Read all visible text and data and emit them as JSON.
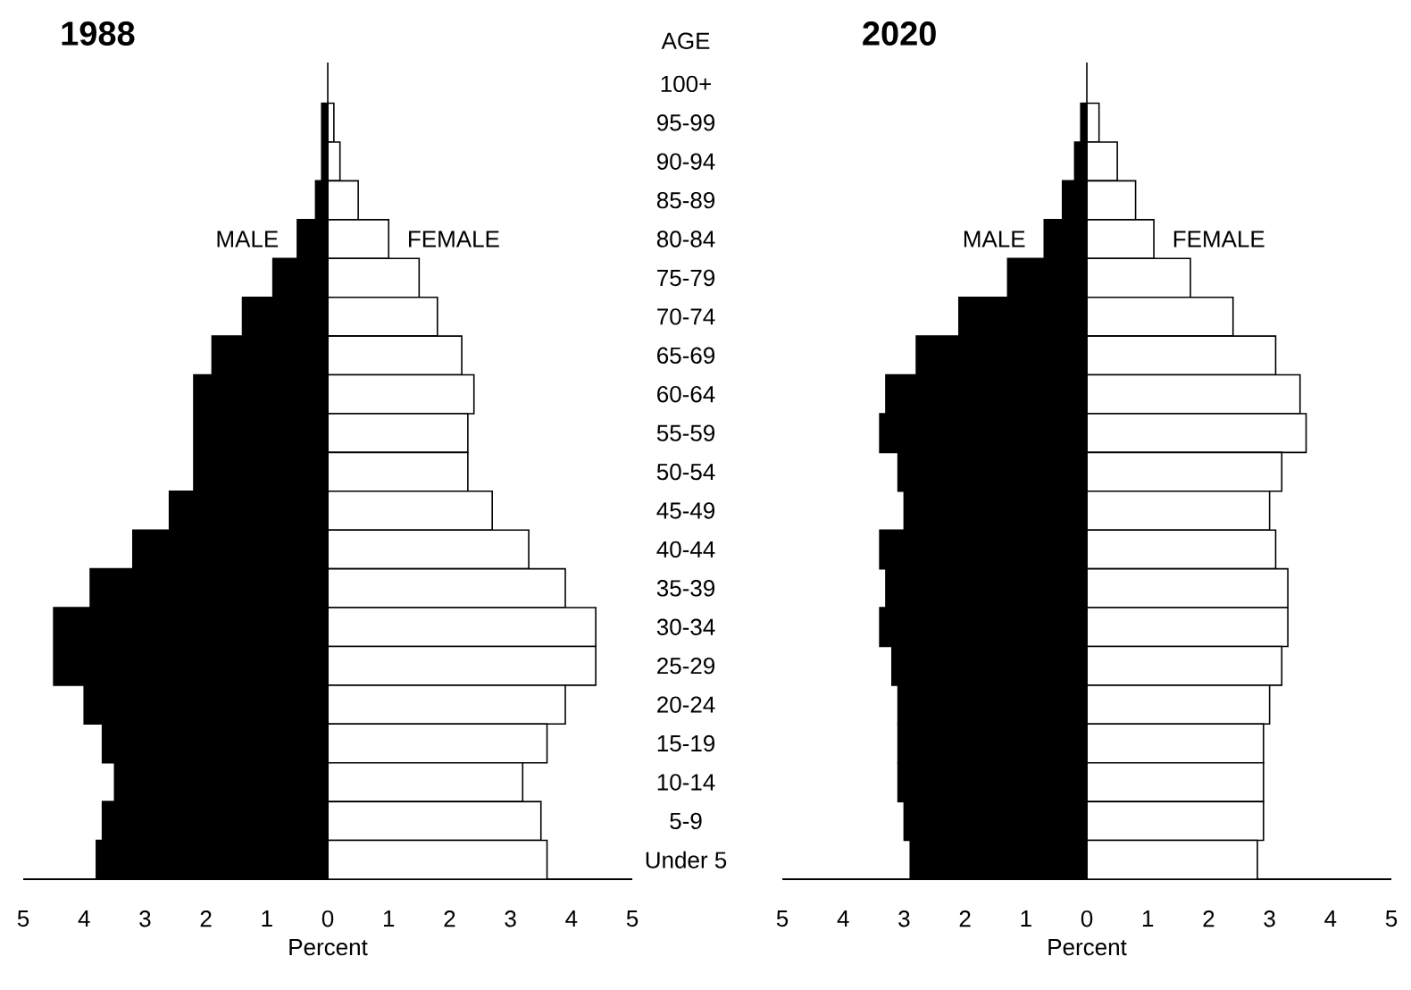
{
  "chart_data": [
    {
      "type": "bar",
      "orientation": "horizontal",
      "stacked": true,
      "title": "1988",
      "xlabel": "Percent",
      "ylabel": "AGE",
      "ref_lines": [
        {
          "axis": "x",
          "value": 0,
          "color": "#000000"
        }
      ],
      "categories": [
        "100+",
        "95-99",
        "90-94",
        "85-89",
        "80-84",
        "75-79",
        "70-74",
        "65-69",
        "60-64",
        "55-59",
        "50-54",
        "45-49",
        "40-44",
        "35-39",
        "30-34",
        "25-29",
        "20-24",
        "15-19",
        "10-14",
        "5-9",
        "Under 5"
      ],
      "series": [
        {
          "name": "MALE",
          "color": "#000000",
          "values": [
            null,
            -0.1,
            -0.1,
            -0.2,
            -0.5,
            -0.9,
            -1.4,
            -1.9,
            -2.2,
            -2.2,
            -2.2,
            -2.6,
            -3.2,
            -3.9,
            -4.5,
            -4.5,
            -4.0,
            -3.7,
            -3.5,
            -3.7,
            -3.8
          ]
        },
        {
          "name": "FEMALE",
          "color": "#ffffff",
          "values": [
            null,
            0.1,
            0.2,
            0.5,
            1.0,
            1.5,
            1.8,
            2.2,
            2.4,
            2.3,
            2.3,
            2.7,
            3.3,
            3.9,
            4.4,
            4.4,
            3.9,
            3.6,
            3.2,
            3.5,
            3.6
          ]
        }
      ],
      "xlim": [
        -5,
        5
      ],
      "xticks": [
        {
          "value": -5,
          "label": "5"
        },
        {
          "value": -4,
          "label": "4"
        },
        {
          "value": -3,
          "label": "3"
        },
        {
          "value": -2,
          "label": "2"
        },
        {
          "value": -1,
          "label": "1"
        },
        0,
        1,
        2,
        3,
        4,
        5
      ]
    },
    {
      "type": "bar",
      "orientation": "horizontal",
      "stacked": true,
      "title": "2020",
      "xlabel": "Percent",
      "tick_labels": "x",
      "ref_lines": [
        {
          "axis": "x",
          "value": 0,
          "color": "#000000"
        }
      ],
      "categories": [
        null,
        null,
        null,
        null,
        null,
        null,
        null,
        null,
        null,
        null,
        null,
        null,
        null,
        null,
        null,
        null,
        null,
        null,
        null,
        null,
        null
      ],
      "series": [
        {
          "name": "MALE",
          "color": "#000000",
          "values": [
            null,
            -0.1,
            -0.2,
            -0.4,
            -0.7,
            -1.3,
            -2.1,
            -2.8,
            -3.3,
            -3.4,
            -3.1,
            -3.0,
            -3.4,
            -3.3,
            -3.4,
            -3.2,
            -3.1,
            -3.1,
            -3.1,
            -3.0,
            -2.9
          ]
        },
        {
          "name": "FEMALE",
          "color": "#ffffff",
          "values": [
            null,
            0.2,
            0.5,
            0.8,
            1.1,
            1.7,
            2.4,
            3.1,
            3.5,
            3.6,
            3.2,
            3.0,
            3.1,
            3.3,
            3.3,
            3.2,
            3.0,
            2.9,
            2.9,
            2.9,
            2.8
          ]
        }
      ],
      "xlim": [
        -5,
        5
      ],
      "xticks": [
        {
          "value": -5,
          "label": "5"
        },
        {
          "value": -4,
          "label": "4"
        },
        {
          "value": -3,
          "label": "3"
        },
        {
          "value": -2,
          "label": "2"
        },
        {
          "value": -1,
          "label": "1"
        },
        0,
        1,
        2,
        3,
        4,
        5
      ]
    }
  ]
}
